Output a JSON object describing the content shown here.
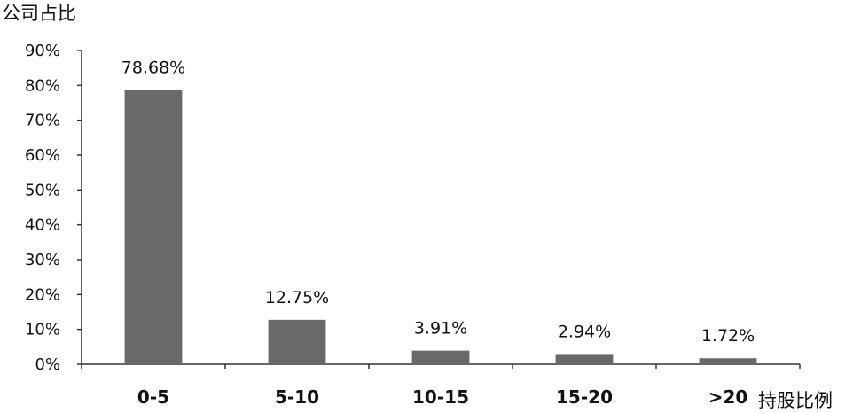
{
  "chart_data": {
    "type": "bar",
    "categories": [
      "0-5",
      "5-10",
      "10-15",
      "15-20",
      ">20"
    ],
    "values": [
      78.68,
      12.75,
      3.91,
      2.94,
      1.72
    ],
    "data_labels": [
      "78.68%",
      "12.75%",
      "3.91%",
      "2.94%",
      "1.72%"
    ],
    "ylabel": "公司占比",
    "xlabel": "持股比例",
    "ylim": [
      0,
      90
    ],
    "y_ticks": [
      "0%",
      "10%",
      "20%",
      "30%",
      "40%",
      "50%",
      "60%",
      "70%",
      "80%",
      "90%"
    ],
    "grid": false,
    "legend": "none",
    "colors": {
      "bar": "#696969"
    }
  }
}
